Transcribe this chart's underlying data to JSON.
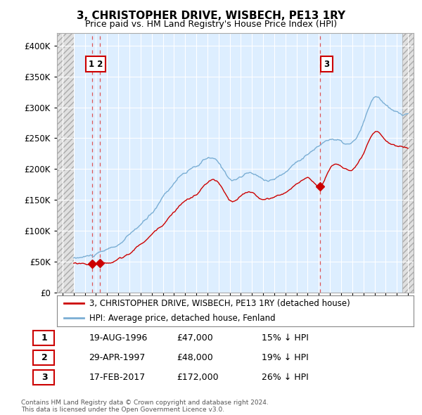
{
  "title": "3, CHRISTOPHER DRIVE, WISBECH, PE13 1RY",
  "subtitle": "Price paid vs. HM Land Registry's House Price Index (HPI)",
  "legend_line1": "3, CHRISTOPHER DRIVE, WISBECH, PE13 1RY (detached house)",
  "legend_line2": "HPI: Average price, detached house, Fenland",
  "footer": "Contains HM Land Registry data © Crown copyright and database right 2024.\nThis data is licensed under the Open Government Licence v3.0.",
  "transactions": [
    {
      "num": 1,
      "date": "19-AUG-1996",
      "price": 47000,
      "hpi_rel": "15% ↓ HPI",
      "x_year": 1996.63
    },
    {
      "num": 2,
      "date": "29-APR-1997",
      "price": 48000,
      "hpi_rel": "19% ↓ HPI",
      "x_year": 1997.33
    },
    {
      "num": 3,
      "date": "17-FEB-2017",
      "price": 172000,
      "hpi_rel": "26% ↓ HPI",
      "x_year": 2017.12
    }
  ],
  "hpi_color": "#7aaed4",
  "sold_color": "#cc0000",
  "vline_color": "#dd4444",
  "marker_color": "#cc0000",
  "ylim": [
    0,
    420000
  ],
  "xlim_start": 1993.5,
  "xlim_end": 2025.5,
  "chart_bg": "#ddeeff",
  "hatch_color": "#cccccc",
  "grid_color": "#ffffff"
}
